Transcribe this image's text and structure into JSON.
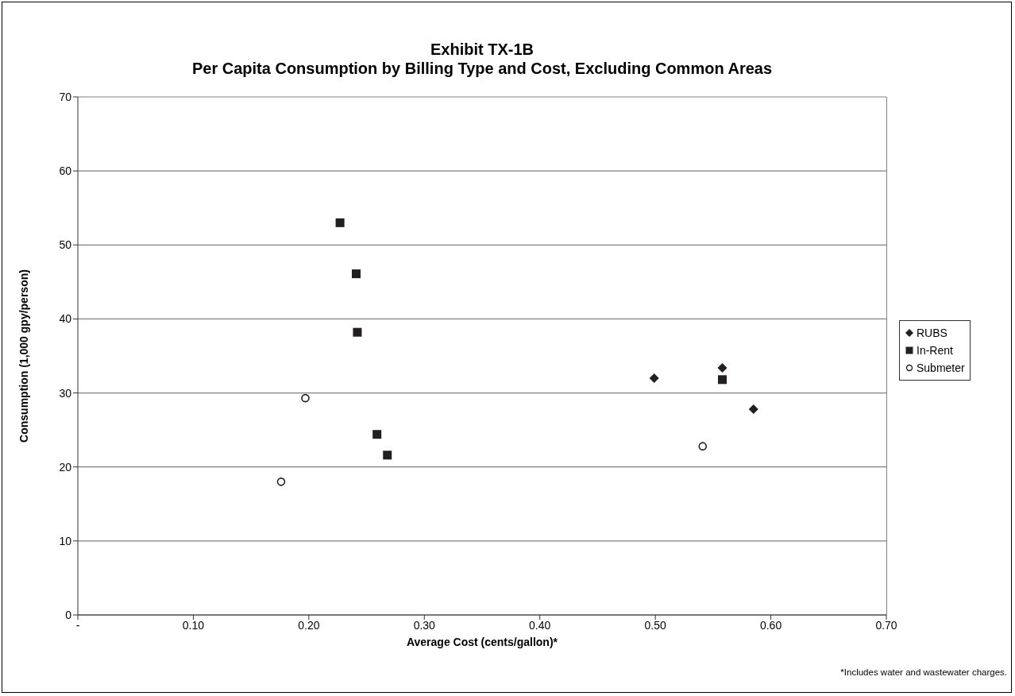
{
  "chart_data": {
    "type": "scatter",
    "title": "Exhibit TX-1B\nPer Capita Consumption by Billing Type and Cost, Excluding Common Areas",
    "xlabel": "Average Cost (cents/gallon)*",
    "ylabel": "Consumption (1,000 gpy/person)",
    "annotations": [
      "*Includes water and wastewater charges."
    ],
    "xlim": [
      0,
      0.7
    ],
    "xticks": [
      {
        "value": 0,
        "label": "-"
      },
      {
        "value": 0.1,
        "label": "0.10"
      },
      {
        "value": 0.2,
        "label": "0.20"
      },
      {
        "value": 0.3,
        "label": "0.30"
      },
      {
        "value": 0.4,
        "label": "0.40"
      },
      {
        "value": 0.5,
        "label": "0.50"
      },
      {
        "value": 0.6,
        "label": "0.60"
      },
      {
        "value": 0.7,
        "label": "0.70"
      }
    ],
    "ylim": [
      0,
      70
    ],
    "yticks": [
      0,
      10,
      20,
      30,
      40,
      50,
      60,
      70
    ],
    "grid": "y",
    "legend": "right",
    "series": [
      {
        "name": "RUBS",
        "color": "#231f20",
        "marker": "diamond",
        "x": [
          0.499,
          0.558,
          0.585
        ],
        "values": [
          32,
          33.4,
          27.8
        ]
      },
      {
        "name": "In-Rent",
        "color": "#231f20",
        "marker": "square",
        "x": [
          0.227,
          0.241,
          0.242,
          0.259,
          0.268,
          0.558
        ],
        "values": [
          53,
          46.1,
          38.2,
          24.4,
          21.6,
          31.8
        ]
      },
      {
        "name": "Submeter",
        "color": "#231f20",
        "marker": "circle",
        "x": [
          0.197,
          0.176,
          0.541
        ],
        "values": [
          29.3,
          18,
          22.8
        ]
      }
    ]
  }
}
